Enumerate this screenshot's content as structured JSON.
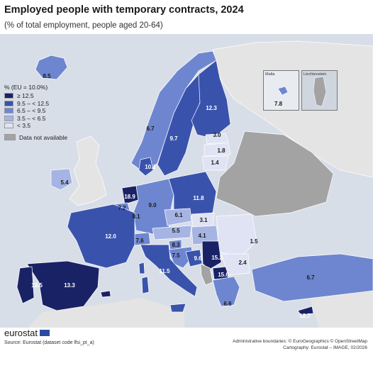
{
  "title": "Employed people with temporary contracts, 2024",
  "subtitle": "(% of total employment, people aged 20-64)",
  "legend": {
    "title": "% (EU = 10.0%)",
    "classes": [
      {
        "label": "≥ 12.5",
        "color": "#1a2266"
      },
      {
        "label": "9.5 – < 12.5",
        "color": "#3953ad"
      },
      {
        "label": "6.5 – < 9.5",
        "color": "#6e86d0"
      },
      {
        "label": "3.5 – < 6.5",
        "color": "#a6b4e4"
      },
      {
        "label": "< 3.5",
        "color": "#dfe3f3"
      }
    ],
    "not_available": {
      "label": "Data not available",
      "color": "#a3a3a3"
    }
  },
  "values": {
    "iceland": "8.5",
    "norway": "6.7",
    "sweden": "9.7",
    "finland": "12.3",
    "estonia": "3.0",
    "latvia": "1.8",
    "lithuania": "1.4",
    "denmark": "10.1",
    "ireland": "5.4",
    "netherlands": "18.9",
    "belgium": "7.2",
    "luxembourg": "8.1",
    "germany": "9.0",
    "poland": "11.8",
    "czechia": "6.1",
    "slovakia": "3.1",
    "hungary": "4.1",
    "romania": "1.5",
    "austria": "5.5",
    "switzerland": "7.6",
    "slovenia": "8.3",
    "croatia": "7.5",
    "bosnia": "9.6",
    "serbia": "15.2",
    "north_macedonia": "15.6",
    "bulgaria": "2.4",
    "france": "12.0",
    "spain": "13.3",
    "portugal": "13.5",
    "italy": "11.5",
    "greece": "6.6",
    "turkey": "6.7",
    "malta": "7.8",
    "cyprus": "12.7"
  },
  "insets": {
    "malta": "Malta",
    "liechtenstein": "Liechtenstein"
  },
  "logo": "eurostat",
  "source": "Source: Eurostat (dataset code lfsi_pt_a)",
  "credits": [
    "Administrative boundaries: © EuroGeographics © OpenStreetMap",
    "Cartography: Eurostat – IMAGE, 02/2026"
  ]
}
